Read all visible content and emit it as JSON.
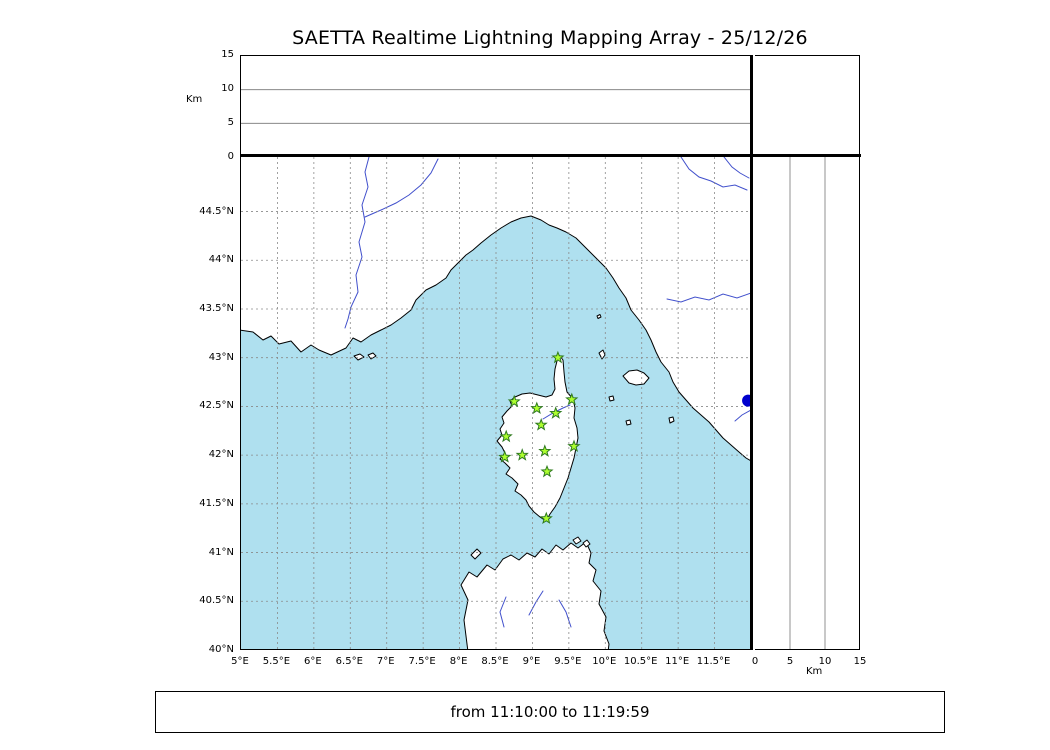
{
  "title": "SAETTA Realtime Lightning Mapping Array - 25/12/26",
  "status": {
    "text": "from 11:10:00 to 11:19:59"
  },
  "colors": {
    "sea": "#afe0ef",
    "land": "#ffffff",
    "coastline": "#000000",
    "grid": "#8a8a8a",
    "river": "#4150cc",
    "station_fill": "#adff2f",
    "station_edge": "#2f7a1f",
    "event_dot": "#0000cd"
  },
  "map": {
    "lon_min": 5.0,
    "lon_max": 12.0,
    "lat_min": 40.0,
    "lat_max": 45.06,
    "lon_tick_values": [
      5,
      5.5,
      6,
      6.5,
      7,
      7.5,
      8,
      8.5,
      9,
      9.5,
      10,
      10.5,
      11,
      11.5
    ],
    "lon_tick_labels": [
      "5°E",
      "5.5°E",
      "6°E",
      "6.5°E",
      "7°E",
      "7.5°E",
      "8°E",
      "8.5°E",
      "9°E",
      "9.5°E",
      "10°E",
      "10.5°E",
      "11°E",
      "11.5°E"
    ],
    "lat_tick_values": [
      40,
      40.5,
      41,
      41.5,
      42,
      42.5,
      43,
      43.5,
      44,
      44.5
    ],
    "lat_tick_labels": [
      "40°N",
      "40.5°N",
      "41°N",
      "41.5°N",
      "42°N",
      "42.5°N",
      "43°N",
      "43.5°N",
      "44°N",
      "44.5°N"
    ]
  },
  "altitude_axis": {
    "label": "Km",
    "max_km": 15,
    "tick_values": [
      0,
      5,
      10,
      15
    ],
    "tick_labels": [
      "0",
      "5",
      "10",
      "15"
    ],
    "grid_values": [
      5,
      10
    ]
  },
  "chart_data": {
    "type": "scatter",
    "title": "SAETTA Realtime Lightning Mapping Array - 25/12/26",
    "x_axis": {
      "units": "°E",
      "range": [
        5.0,
        12.0
      ]
    },
    "y_axis": {
      "units": "°N",
      "range": [
        40.0,
        45.06
      ]
    },
    "altitude_axis_km": {
      "range": [
        0,
        15
      ],
      "ticks": [
        0,
        5,
        10,
        15
      ]
    },
    "time_window": "from 11:10:00 to 11:19:59",
    "series": [
      {
        "name": "lma-stations",
        "marker": "star",
        "points": [
          [
            9.35,
            43.0
          ],
          [
            8.75,
            42.55
          ],
          [
            9.06,
            42.48
          ],
          [
            9.54,
            42.57
          ],
          [
            9.32,
            42.43
          ],
          [
            9.12,
            42.31
          ],
          [
            8.64,
            42.19
          ],
          [
            9.57,
            42.09
          ],
          [
            8.62,
            41.98
          ],
          [
            8.86,
            42.0
          ],
          [
            9.17,
            42.04
          ],
          [
            9.2,
            41.83
          ],
          [
            9.19,
            41.35
          ]
        ]
      },
      {
        "name": "event-marker",
        "marker": "dot",
        "points": [
          [
            11.96,
            42.56
          ]
        ]
      }
    ]
  }
}
